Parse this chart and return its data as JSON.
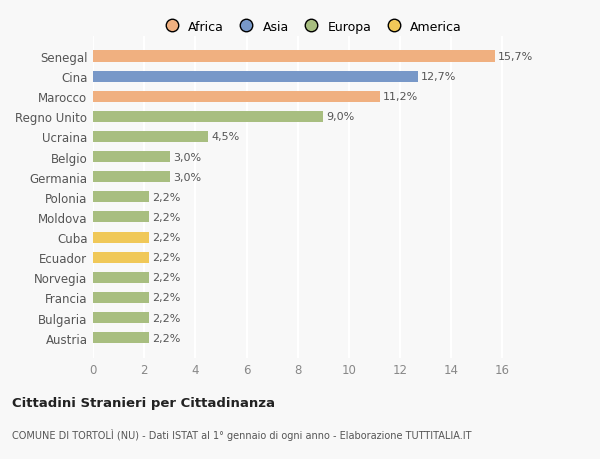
{
  "categories": [
    "Austria",
    "Bulgaria",
    "Francia",
    "Norvegia",
    "Ecuador",
    "Cuba",
    "Moldova",
    "Polonia",
    "Germania",
    "Belgio",
    "Ucraina",
    "Regno Unito",
    "Marocco",
    "Cina",
    "Senegal"
  ],
  "values": [
    2.2,
    2.2,
    2.2,
    2.2,
    2.2,
    2.2,
    2.2,
    2.2,
    3.0,
    3.0,
    4.5,
    9.0,
    11.2,
    12.7,
    15.7
  ],
  "labels": [
    "2,2%",
    "2,2%",
    "2,2%",
    "2,2%",
    "2,2%",
    "2,2%",
    "2,2%",
    "2,2%",
    "3,0%",
    "3,0%",
    "4,5%",
    "9,0%",
    "11,2%",
    "12,7%",
    "15,7%"
  ],
  "colors": [
    "#a8be80",
    "#a8be80",
    "#a8be80",
    "#a8be80",
    "#f0c858",
    "#f0c858",
    "#a8be80",
    "#a8be80",
    "#a8be80",
    "#a8be80",
    "#a8be80",
    "#a8be80",
    "#f0b080",
    "#7898c8",
    "#f0b080"
  ],
  "legend_labels": [
    "Africa",
    "Asia",
    "Europa",
    "America"
  ],
  "legend_colors": [
    "#f0b080",
    "#7898c8",
    "#a8be80",
    "#f0c858"
  ],
  "title": "Cittadini Stranieri per Cittadinanza",
  "subtitle": "COMUNE DI TORTOLÌ (NU) - Dati ISTAT al 1° gennaio di ogni anno - Elaborazione TUTTITALIA.IT",
  "xlim": [
    0,
    17
  ],
  "xticks": [
    0,
    2,
    4,
    6,
    8,
    10,
    12,
    14,
    16
  ],
  "background_color": "#f8f8f8",
  "grid_color": "#ffffff"
}
